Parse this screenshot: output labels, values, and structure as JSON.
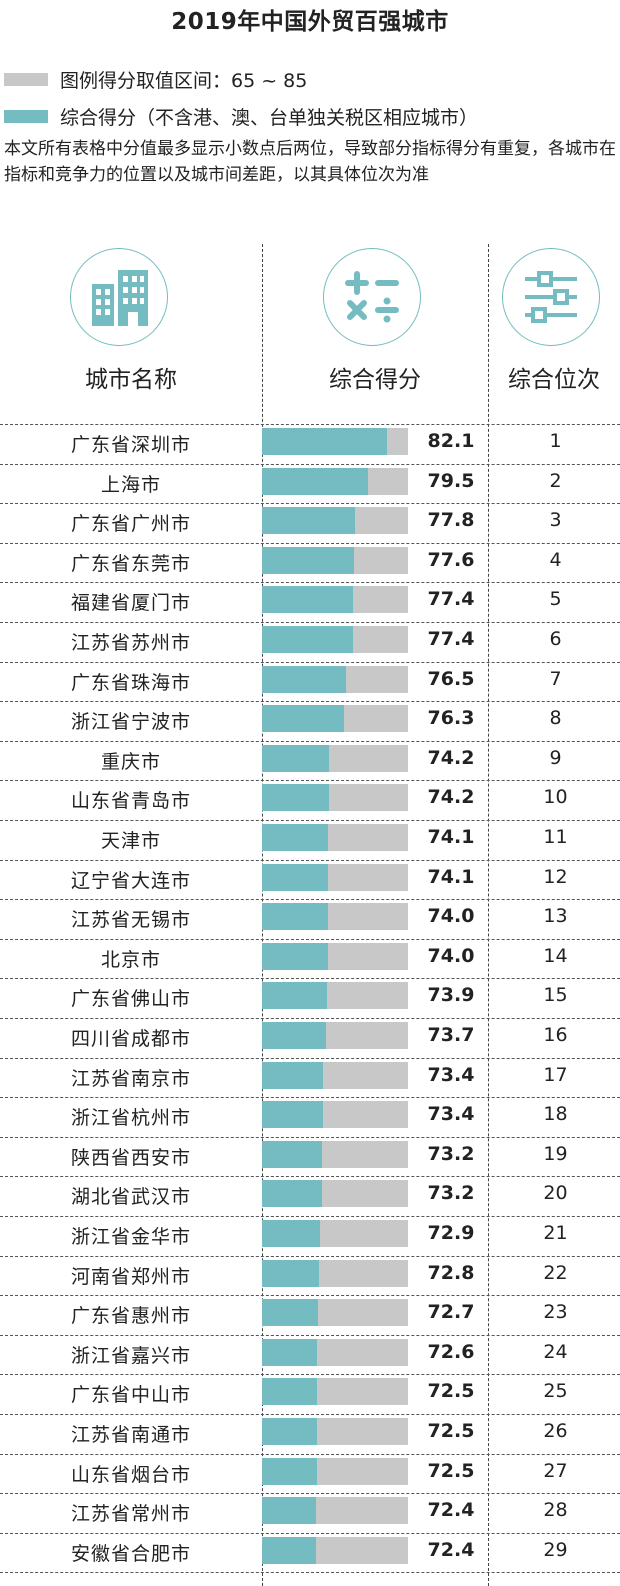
{
  "title": "2019年中国外贸百强城市",
  "legend": {
    "gray_label": "图例得分取值区间：65 ~ 85",
    "teal_label": "综合得分（不含港、澳、台单独关税区相应城市）"
  },
  "note": "本文所有表格中分值最多显示小数点后两位，导致部分指标得分有重复，各城市在指标和竞争力的位置以及城市间差距，以其具体位次为准",
  "headers": {
    "city": "城市名称",
    "score": "综合得分",
    "rank": "综合位次"
  },
  "colors": {
    "teal": "#74bcc1",
    "gray": "#c8c8c8"
  },
  "icons": {
    "city": "building-icon",
    "score": "math-operators-icon",
    "rank": "sliders-icon"
  },
  "chart_data": {
    "type": "bar",
    "title": "2019年中国外贸百强城市",
    "xlim": [
      65,
      85
    ],
    "categories": [
      "广东省深圳市",
      "上海市",
      "广东省广州市",
      "广东省东莞市",
      "福建省厦门市",
      "江苏省苏州市",
      "广东省珠海市",
      "浙江省宁波市",
      "重庆市",
      "山东省青岛市",
      "天津市",
      "辽宁省大连市",
      "江苏省无锡市",
      "北京市",
      "广东省佛山市",
      "四川省成都市",
      "江苏省南京市",
      "浙江省杭州市",
      "陕西省西安市",
      "湖北省武汉市",
      "浙江省金华市",
      "河南省郑州市",
      "广东省惠州市",
      "浙江省嘉兴市",
      "广东省中山市",
      "江苏省南通市",
      "山东省烟台市",
      "江苏省常州市",
      "安徽省合肥市"
    ],
    "values": [
      "82.1",
      "79.5",
      "77.8",
      "77.6",
      "77.4",
      "77.4",
      "76.5",
      "76.3",
      "74.2",
      "74.2",
      "74.1",
      "74.1",
      "74.0",
      "74.0",
      "73.9",
      "73.7",
      "73.4",
      "73.4",
      "73.2",
      "73.2",
      "72.9",
      "72.8",
      "72.7",
      "72.6",
      "72.5",
      "72.5",
      "72.5",
      "72.4",
      "72.4"
    ],
    "ranks": [
      "1",
      "2",
      "3",
      "4",
      "5",
      "6",
      "7",
      "8",
      "9",
      "10",
      "11",
      "12",
      "13",
      "14",
      "15",
      "16",
      "17",
      "18",
      "19",
      "20",
      "21",
      "22",
      "23",
      "24",
      "25",
      "26",
      "27",
      "28",
      "29"
    ]
  }
}
